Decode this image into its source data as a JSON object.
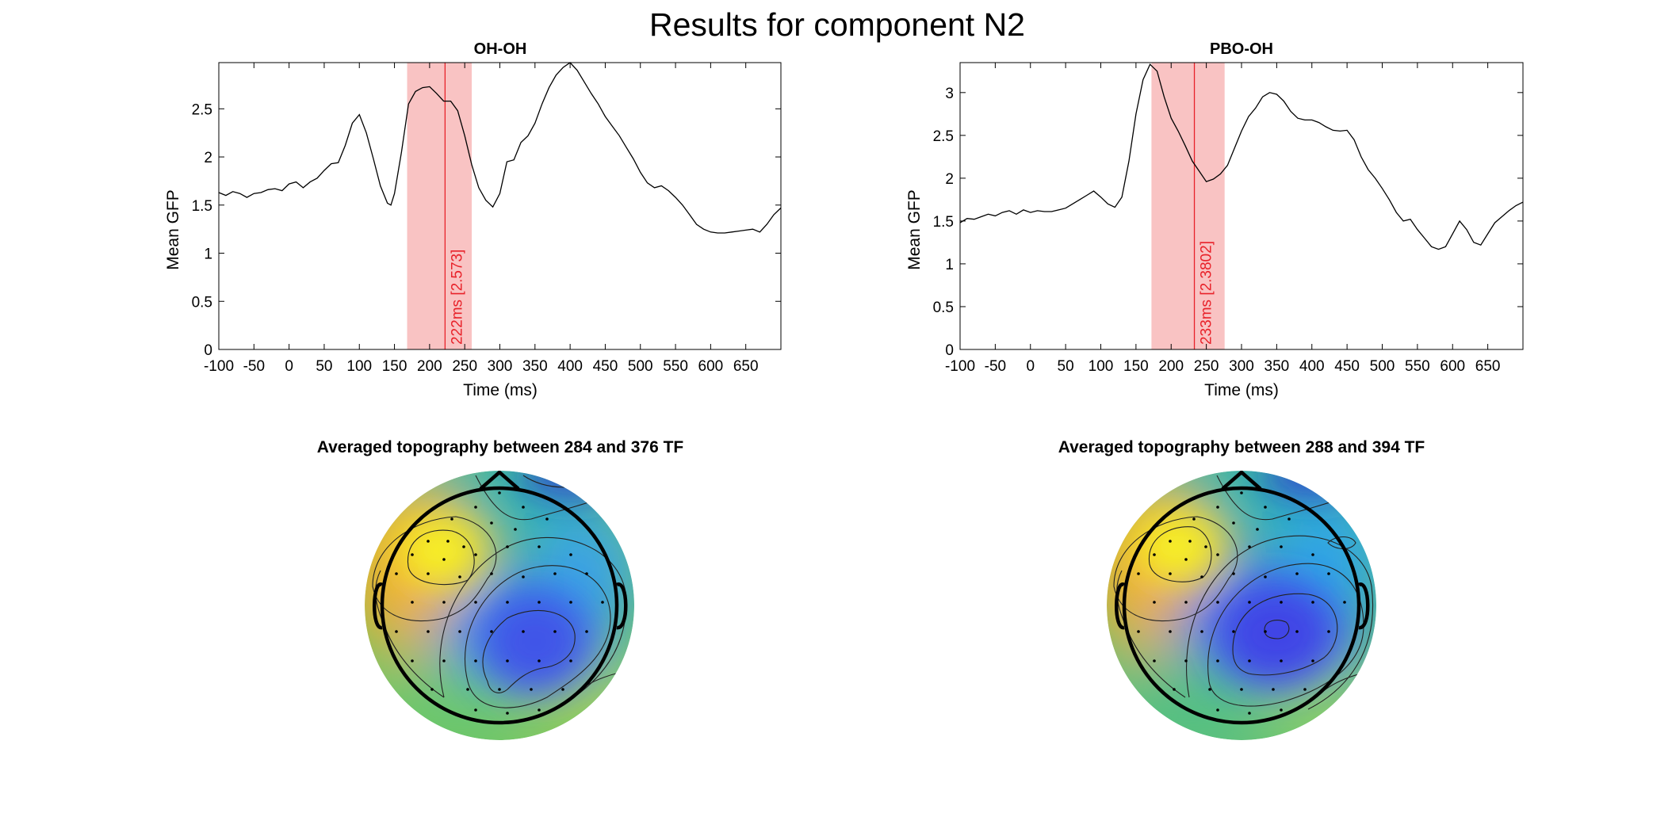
{
  "figure": {
    "title": "Results for component N2"
  },
  "chart_data": [
    {
      "type": "line",
      "title": "OH-OH",
      "xlabel": "Time (ms)",
      "ylabel": "Mean GFP",
      "xlim": [
        -100,
        700
      ],
      "ylim": [
        0,
        2.98
      ],
      "xticks": [
        -100,
        -50,
        0,
        50,
        100,
        150,
        200,
        250,
        300,
        350,
        400,
        450,
        500,
        550,
        600,
        650
      ],
      "xtick_labels": [
        "-100",
        "-50",
        "0",
        "50",
        "100",
        "150",
        "200",
        "250",
        "300",
        "350",
        "400",
        "450",
        "500",
        "550",
        "600",
        "650"
      ],
      "yticks": [
        0,
        0.5,
        1,
        1.5,
        2,
        2.5
      ],
      "ytick_labels": [
        "0",
        "0.5",
        "1",
        "1.5",
        "2",
        "2.5"
      ],
      "window": {
        "start": 168,
        "end": 260,
        "color": "#f9c3c3"
      },
      "peak": {
        "x": 222,
        "y": 2.573,
        "label": "222ms [2.573]",
        "color": "#e8222a"
      },
      "line_color": "#000000",
      "series": [
        {
          "x": [
            -100,
            -90,
            -80,
            -70,
            -60,
            -50,
            -40,
            -30,
            -20,
            -10,
            0,
            10,
            20,
            30,
            40,
            50,
            60,
            70,
            80,
            90,
            100,
            110,
            120,
            130,
            140,
            145,
            150,
            160,
            170,
            180,
            190,
            200,
            210,
            220,
            230,
            240,
            250,
            260,
            270,
            280,
            290,
            300,
            310,
            320,
            330,
            340,
            350,
            360,
            370,
            380,
            390,
            400,
            410,
            420,
            430,
            440,
            450,
            460,
            470,
            480,
            490,
            500,
            510,
            520,
            530,
            540,
            550,
            560,
            570,
            580,
            590,
            600,
            610,
            620,
            630,
            640,
            650,
            660,
            670,
            680,
            690,
            700
          ],
          "y": [
            1.63,
            1.6,
            1.64,
            1.62,
            1.58,
            1.62,
            1.63,
            1.66,
            1.67,
            1.65,
            1.72,
            1.74,
            1.68,
            1.74,
            1.78,
            1.86,
            1.93,
            1.94,
            2.12,
            2.35,
            2.44,
            2.25,
            1.98,
            1.7,
            1.52,
            1.5,
            1.62,
            2.05,
            2.55,
            2.68,
            2.72,
            2.73,
            2.66,
            2.58,
            2.58,
            2.48,
            2.22,
            1.92,
            1.68,
            1.55,
            1.48,
            1.62,
            1.95,
            1.97,
            2.15,
            2.22,
            2.35,
            2.55,
            2.72,
            2.85,
            2.93,
            2.98,
            2.9,
            2.78,
            2.66,
            2.55,
            2.42,
            2.32,
            2.22,
            2.1,
            1.98,
            1.84,
            1.73,
            1.68,
            1.7,
            1.65,
            1.58,
            1.5,
            1.4,
            1.3,
            1.25,
            1.22,
            1.21,
            1.21,
            1.22,
            1.23,
            1.24,
            1.25,
            1.22,
            1.3,
            1.4,
            1.47
          ]
        }
      ]
    },
    {
      "type": "line",
      "title": "PBO-OH",
      "xlabel": "Time (ms)",
      "ylabel": "Mean GFP",
      "xlim": [
        -100,
        700
      ],
      "ylim": [
        0,
        3.35
      ],
      "xticks": [
        -100,
        -50,
        0,
        50,
        100,
        150,
        200,
        250,
        300,
        350,
        400,
        450,
        500,
        550,
        600,
        650
      ],
      "xtick_labels": [
        "-100",
        "-50",
        "0",
        "50",
        "100",
        "150",
        "200",
        "250",
        "300",
        "350",
        "400",
        "450",
        "500",
        "550",
        "600",
        "650"
      ],
      "yticks": [
        0,
        0.5,
        1,
        1.5,
        2,
        2.5,
        3
      ],
      "ytick_labels": [
        "0",
        "0.5",
        "1",
        "1.5",
        "2",
        "2.5",
        "3"
      ],
      "window": {
        "start": 172,
        "end": 276,
        "color": "#f9c3c3"
      },
      "peak": {
        "x": 233,
        "y": 2.3802,
        "label": "233ms [2.3802]",
        "color": "#e8222a"
      },
      "line_color": "#000000",
      "series": [
        {
          "x": [
            -100,
            -90,
            -80,
            -70,
            -60,
            -50,
            -40,
            -30,
            -20,
            -10,
            0,
            10,
            20,
            30,
            40,
            50,
            60,
            70,
            80,
            90,
            100,
            110,
            120,
            130,
            140,
            150,
            160,
            170,
            180,
            190,
            200,
            210,
            220,
            230,
            240,
            250,
            260,
            270,
            280,
            290,
            300,
            310,
            320,
            330,
            340,
            350,
            360,
            370,
            380,
            390,
            400,
            410,
            420,
            430,
            440,
            450,
            460,
            470,
            480,
            490,
            500,
            510,
            520,
            530,
            540,
            550,
            560,
            570,
            580,
            590,
            600,
            610,
            620,
            630,
            640,
            650,
            660,
            670,
            680,
            690,
            700
          ],
          "y": [
            1.48,
            1.53,
            1.52,
            1.55,
            1.58,
            1.56,
            1.6,
            1.62,
            1.58,
            1.63,
            1.6,
            1.62,
            1.61,
            1.61,
            1.63,
            1.65,
            1.7,
            1.75,
            1.8,
            1.85,
            1.78,
            1.7,
            1.66,
            1.78,
            2.2,
            2.75,
            3.15,
            3.33,
            3.25,
            2.95,
            2.7,
            2.55,
            2.38,
            2.2,
            2.08,
            1.96,
            1.99,
            2.05,
            2.15,
            2.35,
            2.55,
            2.72,
            2.82,
            2.95,
            3.0,
            2.98,
            2.9,
            2.78,
            2.7,
            2.68,
            2.68,
            2.65,
            2.6,
            2.56,
            2.55,
            2.56,
            2.45,
            2.25,
            2.1,
            2.0,
            1.88,
            1.75,
            1.6,
            1.5,
            1.52,
            1.4,
            1.3,
            1.2,
            1.17,
            1.2,
            1.35,
            1.5,
            1.4,
            1.25,
            1.22,
            1.35,
            1.48,
            1.55,
            1.62,
            1.68,
            1.72
          ]
        }
      ]
    }
  ],
  "topographies": [
    {
      "title": "Averaged topography between 284 and 376 TF"
    },
    {
      "title": "Averaged topography between 288 and 394 TF"
    }
  ]
}
